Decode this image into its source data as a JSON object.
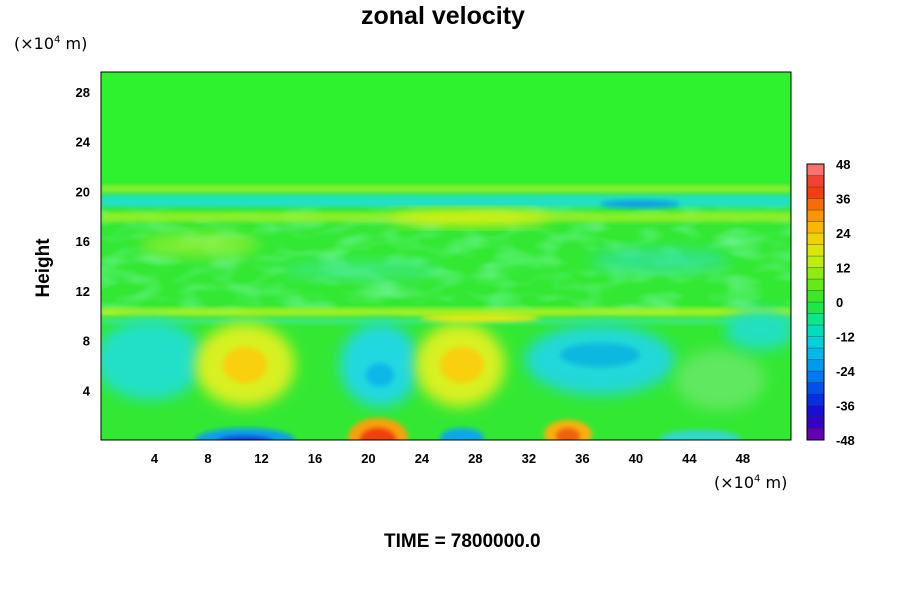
{
  "chart_data": {
    "type": "heatmap",
    "title": "zonal velocity",
    "xlabel": "",
    "ylabel": "Height",
    "x_unit_prefix": "(×10",
    "x_unit_exp": "4",
    "x_unit_suffix": " m)",
    "y_unit_prefix": "(×10",
    "y_unit_exp": "4",
    "y_unit_suffix": " m)",
    "xlim": [
      0,
      51.6
    ],
    "ylim": [
      0,
      29.6
    ],
    "xticks": [
      4,
      8,
      12,
      16,
      20,
      24,
      28,
      32,
      36,
      40,
      44,
      48
    ],
    "yticks": [
      4,
      8,
      12,
      16,
      20,
      24,
      28
    ],
    "colorbar": {
      "min": -48,
      "max": 48,
      "levels_step": 4,
      "ticks": [
        48,
        36,
        24,
        12,
        0,
        -12,
        -24,
        -36,
        -48
      ]
    },
    "features": [
      {
        "x": 21,
        "y": 0.6,
        "value": 34
      },
      {
        "x": 35,
        "y": 0.6,
        "value": 27
      },
      {
        "x": 11,
        "y": 6.2,
        "value": 20
      },
      {
        "x": 27,
        "y": 6.2,
        "value": 20
      },
      {
        "x": 20,
        "y": 5.2,
        "value": -14
      },
      {
        "x": 38.5,
        "y": 6.5,
        "value": -14
      },
      {
        "x": 12,
        "y": 0.3,
        "value": -30
      },
      {
        "x": 27,
        "y": 0.4,
        "value": -22
      },
      {
        "x": 3,
        "y": 6.5,
        "value": -10
      },
      {
        "x": 24,
        "y": 19.6,
        "value": -12
      },
      {
        "x": 31,
        "y": 17.8,
        "value": 12
      },
      {
        "x": 36,
        "y": 10.1,
        "value": 8
      }
    ],
    "grid": false,
    "legend": "right"
  },
  "footer": {
    "time_label": "TIME =",
    "time_value": "7800000.0"
  }
}
